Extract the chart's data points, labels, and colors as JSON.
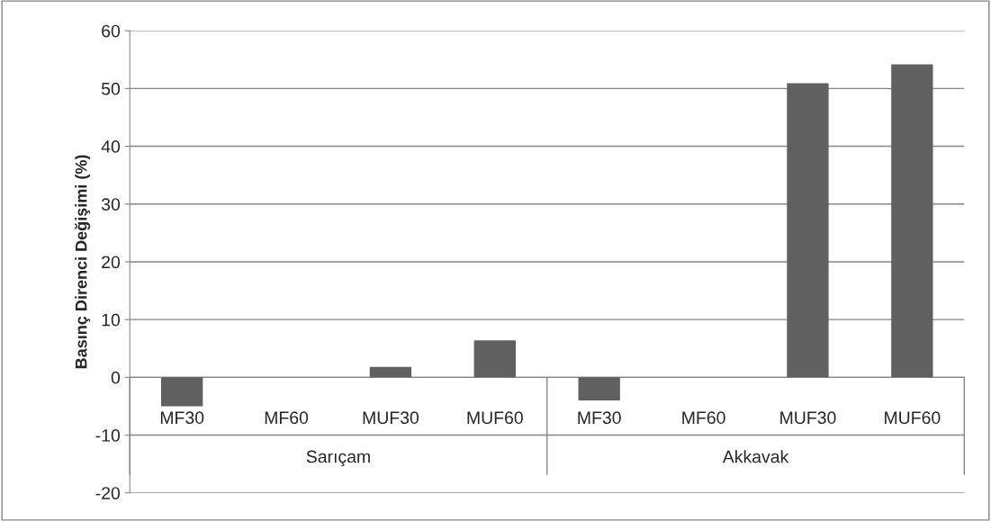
{
  "chart_data": {
    "type": "bar",
    "ylabel": "Basınç Direnci Değişimi (%)",
    "categories": [
      "MF30",
      "MF60",
      "MUF30",
      "MUF60",
      "MF30",
      "MF60",
      "MUF30",
      "MUF60"
    ],
    "values": [
      -5.0,
      null,
      1.8,
      6.4,
      -4.0,
      0.0,
      50.9,
      54.2
    ],
    "color": "#606060",
    "annotations": [
      "Sarıçam",
      "Akkavak"
    ],
    "ylim": [
      -20,
      60
    ],
    "yticks": [
      -20,
      -10,
      0,
      10,
      20,
      30,
      40,
      50,
      60
    ],
    "grid": "y",
    "legend": false
  }
}
